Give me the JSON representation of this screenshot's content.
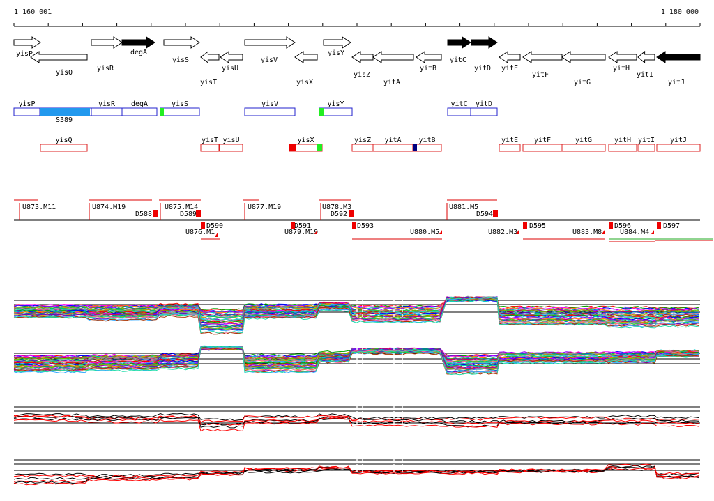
{
  "coords": {
    "start": "1 160 001",
    "end": "1 180 000"
  },
  "colors": {
    "gene_fill": "#000000",
    "transcript_plus": "#2222cc",
    "transcript_minus": "#dd2222",
    "segment": "#dd0000",
    "highlight_cyan": "#2299ee",
    "marker_green": "#22ee22",
    "marker_red": "#ee0000",
    "marker_navy": "#000080"
  },
  "genes": [
    {
      "name": "yisP",
      "strand": "+",
      "filled": false,
      "row": 0
    },
    {
      "name": "yisQ",
      "strand": "-",
      "filled": false,
      "row": 1
    },
    {
      "name": "yisR",
      "strand": "+",
      "filled": false,
      "row": 0
    },
    {
      "name": "degA",
      "strand": "+",
      "filled": true,
      "row": 0
    },
    {
      "name": "yisS",
      "strand": "+",
      "filled": false,
      "row": 0
    },
    {
      "name": "yisT",
      "strand": "-",
      "filled": false,
      "row": 1
    },
    {
      "name": "yisU",
      "strand": "-",
      "filled": false,
      "row": 1
    },
    {
      "name": "yisV",
      "strand": "+",
      "filled": false,
      "row": 0
    },
    {
      "name": "yisX",
      "strand": "-",
      "filled": false,
      "row": 1
    },
    {
      "name": "yisY",
      "strand": "+",
      "filled": false,
      "row": 0
    },
    {
      "name": "yisZ",
      "strand": "-",
      "filled": false,
      "row": 1
    },
    {
      "name": "yitA",
      "strand": "-",
      "filled": false,
      "row": 1
    },
    {
      "name": "yitB",
      "strand": "-",
      "filled": false,
      "row": 1
    },
    {
      "name": "yitC",
      "strand": "+",
      "filled": true,
      "row": 0
    },
    {
      "name": "yitD",
      "strand": "+",
      "filled": true,
      "row": 0
    },
    {
      "name": "yitE",
      "strand": "-",
      "filled": false,
      "row": 1
    },
    {
      "name": "yitF",
      "strand": "-",
      "filled": false,
      "row": 1
    },
    {
      "name": "yitG",
      "strand": "-",
      "filled": false,
      "row": 1
    },
    {
      "name": "yitH",
      "strand": "-",
      "filled": false,
      "row": 1
    },
    {
      "name": "yitI",
      "strand": "-",
      "filled": false,
      "row": 1
    },
    {
      "name": "yitJ",
      "strand": "-",
      "filled": true,
      "row": 1
    }
  ],
  "transcripts_plus": [
    "yisP",
    "yisR",
    "degA",
    "yisS",
    "yisV",
    "yisY",
    "yitC",
    "yitD"
  ],
  "transcripts_minus": [
    "yisQ",
    "yisT",
    "yisU",
    "yisX",
    "yisZ",
    "yitA",
    "yitB",
    "yitE",
    "yitF",
    "yitG",
    "yitH",
    "yitI",
    "yitJ"
  ],
  "region_label": "S389",
  "segments_upper": [
    "U873.M11",
    "U874.M19",
    "D588",
    "U875.M14",
    "D589",
    "U877.M19",
    "U878.M3",
    "D592",
    "U881.M5",
    "D594"
  ],
  "segments_lower": [
    "D590",
    "U876.M1",
    "D591",
    "U879.M19",
    "D593",
    "U880.M5",
    "U882.M3",
    "D595",
    "U883.M8",
    "D596",
    "U884.M4",
    "D597"
  ]
}
